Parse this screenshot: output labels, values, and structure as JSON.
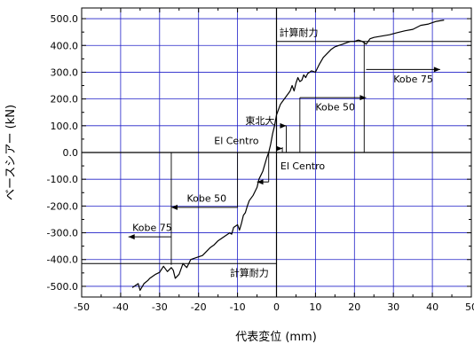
{
  "chart_data": {
    "type": "line",
    "title": "",
    "xlabel": "代表変位 (mm)",
    "ylabel": "ベースシアー (kN)",
    "xlim": [
      -50,
      50
    ],
    "ylim": [
      -540,
      540
    ],
    "x_ticks": [
      -50,
      -40,
      -30,
      -20,
      -10,
      0,
      10,
      20,
      30,
      40,
      50
    ],
    "y_ticks": [
      -500,
      -400,
      -300,
      -200,
      -100,
      0,
      100,
      200,
      300,
      400,
      500
    ],
    "x_tick_labels": [
      "-50",
      "-40",
      "-30",
      "-20",
      "-10",
      "0",
      "10",
      "20",
      "30",
      "40",
      "50"
    ],
    "y_tick_labels": [
      "-500.0",
      "-400.0",
      "-300.0",
      "-200.0",
      "-100.0",
      "0.0",
      "100.0",
      "200.0",
      "300.0",
      "400.0",
      "500.0"
    ],
    "grid": true,
    "series": [
      {
        "x": [
          -37,
          -35.5,
          -35,
          -34,
          -33,
          -32.5,
          -31,
          -30,
          -29,
          -28,
          -27,
          -26.5,
          -26,
          -25,
          -24,
          -23,
          -22,
          -21,
          -20,
          -19,
          -18,
          -17,
          -16,
          -15,
          -14,
          -13,
          -12,
          -11.5,
          -11,
          -10,
          -9.5,
          -9,
          -8.5,
          -8,
          -7.5,
          -7,
          -6,
          -5,
          -4.5,
          -4,
          -3.5,
          -3,
          -2.5,
          -2,
          -1.5,
          -1,
          -0.5,
          0,
          0.5,
          1,
          1.5,
          2,
          2.5,
          3,
          3.5,
          4,
          4.5,
          5,
          5.5,
          6,
          6.5,
          7,
          7.5,
          8,
          9,
          10,
          11,
          12,
          13,
          14,
          15,
          16,
          17,
          18,
          19,
          20,
          21,
          22,
          23,
          24,
          25,
          27,
          29,
          31,
          33,
          35,
          37,
          39,
          41,
          43
        ],
        "y": [
          -505,
          -490,
          -515,
          -490,
          -478,
          -470,
          -455,
          -448,
          -425,
          -445,
          -430,
          -440,
          -470,
          -455,
          -415,
          -430,
          -400,
          -395,
          -390,
          -385,
          -370,
          -355,
          -345,
          -330,
          -320,
          -310,
          -300,
          -305,
          -280,
          -270,
          -290,
          -265,
          -235,
          -225,
          -200,
          -180,
          -160,
          -130,
          -100,
          -85,
          -70,
          -45,
          -20,
          0,
          30,
          70,
          100,
          140,
          160,
          180,
          190,
          200,
          210,
          220,
          230,
          250,
          230,
          260,
          280,
          265,
          270,
          290,
          280,
          295,
          305,
          300,
          330,
          355,
          370,
          385,
          395,
          400,
          405,
          410,
          415,
          415,
          420,
          415,
          405,
          425,
          430,
          435,
          440,
          448,
          455,
          460,
          475,
          480,
          490,
          495
        ]
      }
    ],
    "hlines": [
      {
        "y": 415,
        "x_from": 0,
        "x_to": 50,
        "label": "計算耐力"
      },
      {
        "y": -415,
        "x_from": -50,
        "x_to": 0,
        "label": "計算耐力"
      }
    ],
    "annotations": [
      {
        "label": "Kobe 75",
        "x_start": 23,
        "x_end": 42,
        "y": 310,
        "direction": "right",
        "label_x": 30,
        "label_y": 275
      },
      {
        "label": "Kobe 50",
        "x_start": 6,
        "x_end": 23,
        "y": 205,
        "direction": "right",
        "label_x": 10,
        "label_y": 170
      },
      {
        "label": "東北大",
        "x_start": 1,
        "x_end": 2.5,
        "y": 100,
        "direction": "right",
        "label_x": -8,
        "label_y": 120
      },
      {
        "label": "El Centro",
        "x_start": 0,
        "x_end": 1.5,
        "y": 15,
        "direction": "right",
        "label_x": -16,
        "label_y": 45
      },
      {
        "label": "El Centro",
        "x_start": -2,
        "x_end": -5,
        "y": -110,
        "direction": "left",
        "label_x": 1,
        "label_y": -50
      },
      {
        "label": "Kobe 50",
        "x_start": -10,
        "x_end": -27,
        "y": -205,
        "direction": "left",
        "label_x": -23,
        "label_y": -170
      },
      {
        "label": "Kobe 75",
        "x_start": -27,
        "x_end": -38,
        "y": -315,
        "direction": "left",
        "label_x": -37,
        "label_y": -280
      }
    ],
    "verticals": [
      {
        "x": 22.5,
        "y_from": 0,
        "y_to": 415
      },
      {
        "x": 6,
        "y_from": 0,
        "y_to": 205
      },
      {
        "x": 2.5,
        "y_from": 0,
        "y_to": 100
      },
      {
        "x": 1.5,
        "y_from": 0,
        "y_to": 20
      },
      {
        "x": -2,
        "y_from": -110,
        "y_to": 0
      },
      {
        "x": -10,
        "y_from": -205,
        "y_to": 0
      },
      {
        "x": -27,
        "y_from": -420,
        "y_to": 0
      }
    ]
  }
}
